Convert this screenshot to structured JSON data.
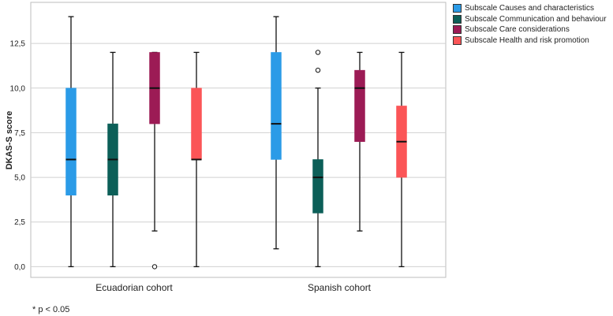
{
  "chart_data": {
    "type": "boxplot",
    "ylabel": "DKAS-S score",
    "xlabel": "",
    "ylim": [
      -0.6,
      14.8
    ],
    "y_ticks": [
      "0,0",
      "2,5",
      "5,0",
      "7,5",
      "10,0",
      "12,5"
    ],
    "y_tick_values": [
      0,
      2.5,
      5,
      7.5,
      10,
      12.5
    ],
    "grid": "horizontal",
    "legend_position": "top-right",
    "categories": [
      "Ecuadorian cohort",
      "Spanish cohort"
    ],
    "series": [
      {
        "name": "Subscale Causes and characteristics",
        "color": "#2b9be7",
        "boxes": [
          {
            "min": 0,
            "q1": 4,
            "median": 6,
            "q3": 10,
            "max": 14,
            "outliers": []
          },
          {
            "min": 1,
            "q1": 6,
            "median": 8,
            "q3": 12,
            "max": 14,
            "outliers": []
          }
        ]
      },
      {
        "name": "Subscale Communication and behaviour",
        "color": "#0c5f58",
        "boxes": [
          {
            "min": 0,
            "q1": 4,
            "median": 6,
            "q3": 8,
            "max": 12,
            "outliers": []
          },
          {
            "min": 0,
            "q1": 3,
            "median": 5,
            "q3": 6,
            "max": 10,
            "outliers": [
              11,
              12
            ]
          }
        ]
      },
      {
        "name": "Subscale Care considerations",
        "color": "#9c1b55",
        "boxes": [
          {
            "min": 2,
            "q1": 8,
            "median": 10,
            "q3": 12,
            "max": 12,
            "outliers": [
              0
            ]
          },
          {
            "min": 2,
            "q1": 7,
            "median": 10,
            "q3": 11,
            "max": 12,
            "outliers": []
          }
        ]
      },
      {
        "name": "Subscale Health and risk promotion",
        "color": "#fb5557",
        "boxes": [
          {
            "min": 0,
            "q1": 6,
            "median": 6,
            "q3": 10,
            "max": 12,
            "outliers": []
          },
          {
            "min": 0,
            "q1": 5,
            "median": 7,
            "q3": 9,
            "max": 12,
            "outliers": []
          }
        ]
      }
    ]
  },
  "footnote": "* p < 0.05"
}
